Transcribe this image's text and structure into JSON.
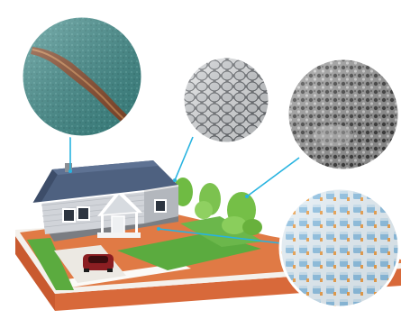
{
  "scene": {
    "subject": "house-on-lot",
    "magnified_views": [
      {
        "id": "crack",
        "icon": "cracked-concrete-icon"
      },
      {
        "id": "pebbles",
        "icon": "granular-texture-icon"
      },
      {
        "id": "porous",
        "icon": "porous-texture-icon"
      },
      {
        "id": "lattice",
        "icon": "crystal-lattice-icon"
      }
    ]
  },
  "colors": {
    "leader_line": "#27b3e0",
    "roof": "#4e6180",
    "walls": "#c9ccd1",
    "trim": "#ffffff",
    "lawn": "#5bab3f",
    "soil": "#d8693a",
    "car": "#8b1e22",
    "tree": "#7cc24f"
  }
}
